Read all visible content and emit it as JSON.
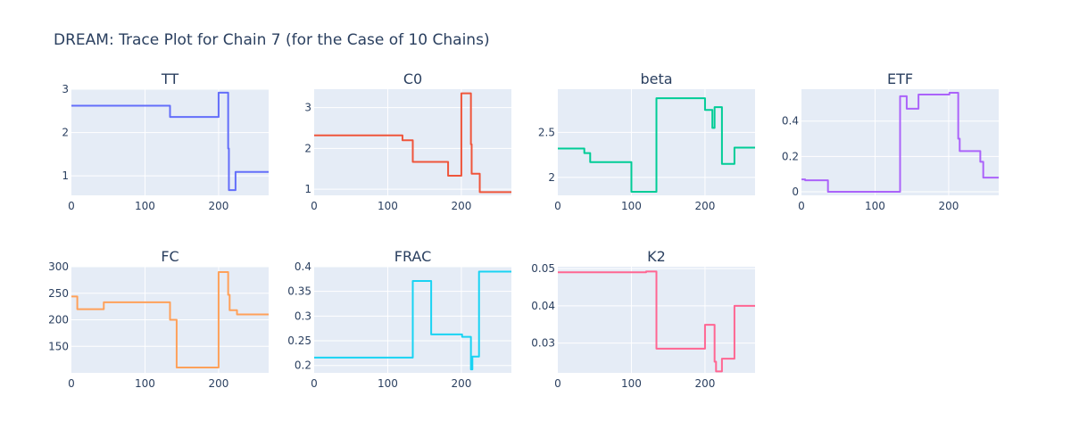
{
  "title": "DREAM: Trace Plot for Chain 7 (for the Case of 10 Chains)",
  "chart_data": [
    {
      "type": "line",
      "title": "TT",
      "color": "#636efa",
      "xlim": [
        0,
        268
      ],
      "ylim": [
        0.55,
        3.0
      ],
      "xticks": [
        0,
        100,
        200
      ],
      "yticks": [
        1,
        2,
        3
      ],
      "ytick_labels": [
        "1",
        "2",
        "3"
      ],
      "x": [
        0,
        134,
        134,
        200,
        200,
        213,
        213,
        214,
        214,
        223,
        223,
        268
      ],
      "y": [
        2.62,
        2.62,
        2.36,
        2.36,
        2.92,
        2.92,
        1.63,
        1.63,
        0.67,
        0.67,
        1.09,
        1.09
      ]
    },
    {
      "type": "line",
      "title": "C0",
      "color": "#ef553b",
      "xlim": [
        0,
        268
      ],
      "ylim": [
        0.85,
        3.45
      ],
      "xticks": [
        0,
        100,
        200
      ],
      "yticks": [
        1,
        2,
        3
      ],
      "ytick_labels": [
        "1",
        "2",
        "3"
      ],
      "x": [
        0,
        120,
        120,
        134,
        134,
        182,
        182,
        200,
        200,
        213,
        213,
        214,
        214,
        216,
        216,
        225,
        225,
        268
      ],
      "y": [
        2.32,
        2.32,
        2.2,
        2.2,
        1.67,
        1.67,
        1.33,
        1.33,
        3.35,
        3.35,
        2.1,
        2.1,
        1.38,
        1.38,
        1.38,
        1.38,
        0.93,
        0.93
      ]
    },
    {
      "type": "line",
      "title": "beta",
      "color": "#00cc96",
      "xlim": [
        0,
        268
      ],
      "ylim": [
        1.8,
        2.98
      ],
      "xticks": [
        0,
        100,
        200
      ],
      "yticks": [
        2,
        2.5
      ],
      "ytick_labels": [
        "2",
        "2.5"
      ],
      "x": [
        0,
        36,
        36,
        44,
        44,
        100,
        100,
        134,
        134,
        200,
        200,
        210,
        210,
        213,
        213,
        216,
        216,
        223,
        223,
        240,
        240,
        268
      ],
      "y": [
        2.32,
        2.32,
        2.27,
        2.27,
        2.17,
        2.17,
        1.84,
        1.84,
        2.88,
        2.88,
        2.75,
        2.75,
        2.55,
        2.55,
        2.78,
        2.78,
        2.78,
        2.78,
        2.15,
        2.15,
        2.33,
        2.33
      ]
    },
    {
      "type": "line",
      "title": "ETF",
      "color": "#ab63fa",
      "xlim": [
        0,
        268
      ],
      "ylim": [
        -0.02,
        0.58
      ],
      "xticks": [
        0,
        100,
        200
      ],
      "yticks": [
        0,
        0.2,
        0.4
      ],
      "ytick_labels": [
        "0",
        "0.2",
        "0.4"
      ],
      "x": [
        0,
        5,
        5,
        36,
        36,
        134,
        134,
        143,
        143,
        159,
        159,
        201,
        201,
        213,
        213,
        215,
        215,
        243,
        243,
        247,
        247,
        268
      ],
      "y": [
        0.07,
        0.07,
        0.065,
        0.065,
        0.0,
        0.0,
        0.54,
        0.54,
        0.47,
        0.47,
        0.55,
        0.55,
        0.56,
        0.56,
        0.3,
        0.3,
        0.23,
        0.23,
        0.17,
        0.17,
        0.08,
        0.08
      ]
    },
    {
      "type": "line",
      "title": "FC",
      "color": "#ffa15a",
      "xlim": [
        0,
        268
      ],
      "ylim": [
        100,
        300
      ],
      "xticks": [
        0,
        100,
        200
      ],
      "yticks": [
        150,
        200,
        250,
        300
      ],
      "ytick_labels": [
        "150",
        "200",
        "250",
        "300"
      ],
      "x": [
        0,
        8,
        8,
        44,
        44,
        134,
        134,
        143,
        143,
        200,
        200,
        213,
        213,
        215,
        215,
        225,
        225,
        268
      ],
      "y": [
        244,
        244,
        220,
        220,
        233,
        233,
        200,
        200,
        110,
        110,
        290,
        290,
        247,
        247,
        218,
        218,
        210,
        210
      ]
    },
    {
      "type": "line",
      "title": "FRAC",
      "color": "#19d3f3",
      "xlim": [
        0,
        268
      ],
      "ylim": [
        0.185,
        0.4
      ],
      "xticks": [
        0,
        100,
        200
      ],
      "yticks": [
        0.2,
        0.25,
        0.3,
        0.35,
        0.4
      ],
      "ytick_labels": [
        "0.2",
        "0.25",
        "0.3",
        "0.35",
        "0.4"
      ],
      "x": [
        0,
        134,
        134,
        159,
        159,
        201,
        201,
        213,
        213,
        215,
        215,
        224,
        224,
        268
      ],
      "y": [
        0.216,
        0.216,
        0.371,
        0.371,
        0.263,
        0.263,
        0.258,
        0.258,
        0.192,
        0.192,
        0.218,
        0.218,
        0.39,
        0.39
      ]
    },
    {
      "type": "line",
      "title": "K2",
      "color": "#ff6692",
      "xlim": [
        0,
        268
      ],
      "ylim": [
        0.022,
        0.0505
      ],
      "xticks": [
        0,
        100,
        200
      ],
      "yticks": [
        0.03,
        0.04,
        0.05
      ],
      "ytick_labels": [
        "0.03",
        "0.04",
        "0.05"
      ],
      "x": [
        0,
        120,
        120,
        134,
        134,
        200,
        200,
        213,
        213,
        215,
        215,
        223,
        223,
        240,
        240,
        268
      ],
      "y": [
        0.049,
        0.049,
        0.0492,
        0.0492,
        0.0285,
        0.0285,
        0.0349,
        0.0349,
        0.025,
        0.025,
        0.0224,
        0.0224,
        0.0258,
        0.0258,
        0.04,
        0.04
      ]
    }
  ]
}
